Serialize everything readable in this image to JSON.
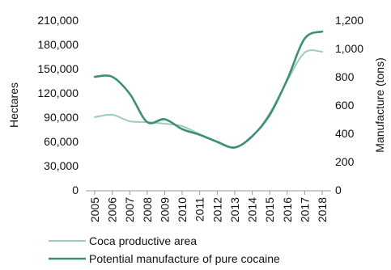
{
  "chart_data": {
    "type": "line",
    "x": [
      "2005",
      "2006",
      "2007",
      "2008",
      "2009",
      "2010",
      "2011",
      "2012",
      "2013",
      "2014",
      "2015",
      "2016",
      "2017",
      "2018"
    ],
    "ylabel": "Hectares",
    "y2label": "Manufacture (tons)",
    "ylim": [
      0,
      210000
    ],
    "y2lim": [
      0,
      1200
    ],
    "yticks": [
      "0",
      "30,000",
      "60,000",
      "90,000",
      "120,000",
      "150,000",
      "180,000",
      "210,000"
    ],
    "y2ticks": [
      "0",
      "200",
      "400",
      "600",
      "800",
      "1,000",
      "1,200"
    ],
    "grid": false,
    "legend_position": "bottom",
    "series": [
      {
        "name": "Coca productive area",
        "axis": "left",
        "color": "#9ccdb6",
        "values": [
          90000,
          93000,
          85000,
          84000,
          82000,
          79000,
          69000,
          60000,
          53000,
          66000,
          95000,
          135000,
          170000,
          171000
        ]
      },
      {
        "name": "Potential manufacture of pure cocaine",
        "axis": "right",
        "color": "#3d8f78",
        "values": [
          800,
          800,
          680,
          480,
          500,
          430,
          390,
          340,
          300,
          380,
          530,
          780,
          1070,
          1120
        ]
      }
    ]
  }
}
